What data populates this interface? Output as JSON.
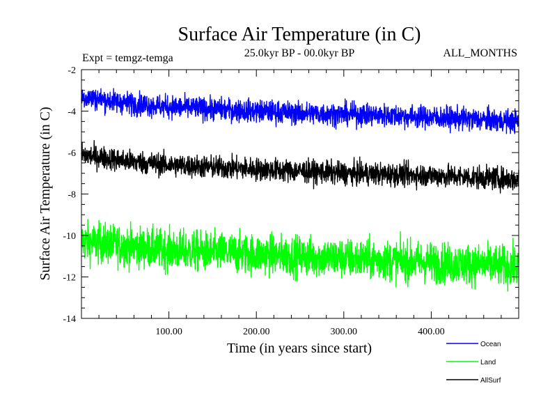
{
  "chart_data": {
    "type": "line",
    "title": "Surface Air Temperature (in C)",
    "subtitle": "25.0kyr BP - 00.0kyr BP",
    "expt_label": "Expt = temgz-temga",
    "months_label": "ALL_MONTHS",
    "xlabel": "Time (in years since start)",
    "ylabel": "Surface Air Temperature (in C)",
    "xlim": [
      0,
      500
    ],
    "ylim": [
      -14,
      -2
    ],
    "x_ticks": [
      100,
      200,
      300,
      400
    ],
    "x_tick_labels": [
      "100.00",
      "200.00",
      "300.00",
      "400.00"
    ],
    "y_ticks": [
      -2,
      -4,
      -6,
      -8,
      -10,
      -12,
      -14
    ],
    "y_tick_labels": [
      "-2",
      "-4",
      "-6",
      "-8",
      "-10",
      "-12",
      "-14"
    ],
    "grid": false,
    "legend_position": "bottom-right",
    "series": [
      {
        "name": "Ocean",
        "color": "#0000ff",
        "x": [
          0,
          50,
          100,
          150,
          200,
          250,
          300,
          350,
          400,
          450,
          500
        ],
        "trend": [
          -3.3,
          -3.6,
          -3.8,
          -3.9,
          -4.0,
          -4.1,
          -4.15,
          -4.2,
          -4.3,
          -4.4,
          -4.5
        ],
        "noise_amplitude": 0.45
      },
      {
        "name": "Land",
        "color": "#00ff00",
        "x": [
          0,
          50,
          100,
          150,
          200,
          250,
          300,
          350,
          400,
          450,
          500
        ],
        "trend": [
          -10.3,
          -10.5,
          -10.7,
          -10.8,
          -10.9,
          -11.0,
          -11.1,
          -11.2,
          -11.3,
          -11.4,
          -11.5
        ],
        "noise_amplitude": 0.8
      },
      {
        "name": "AllSurf",
        "color": "#000000",
        "x": [
          0,
          50,
          100,
          150,
          200,
          250,
          300,
          350,
          400,
          450,
          500
        ],
        "trend": [
          -6.1,
          -6.4,
          -6.6,
          -6.7,
          -6.8,
          -6.9,
          -7.0,
          -7.05,
          -7.1,
          -7.2,
          -7.3
        ],
        "noise_amplitude": 0.45
      }
    ]
  }
}
